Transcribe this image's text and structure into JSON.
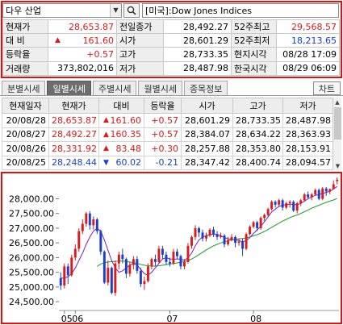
{
  "search": {
    "index_name": "다우 산업",
    "title": "[미국]:Dow Jones Indices"
  },
  "quote": {
    "rows": [
      [
        {
          "label": "현재가",
          "value": "28,653.87",
          "color": "up"
        },
        {
          "label": "전일종가",
          "value": "28,492.27",
          "color": ""
        },
        {
          "label": "52주최고",
          "value": "29,568.57",
          "color": "up"
        }
      ],
      [
        {
          "label": "대  비",
          "value": "161.60",
          "arrow": "▲",
          "color": "up"
        },
        {
          "label": "시가",
          "value": "28,601.29",
          "color": ""
        },
        {
          "label": "52주최저",
          "value": "18,213.65",
          "color": "down"
        }
      ],
      [
        {
          "label": "등락율",
          "value": "+0.57",
          "color": "up"
        },
        {
          "label": "고가",
          "value": "28,733.35",
          "color": ""
        },
        {
          "label": "현지시각",
          "value": "08/28 17:09",
          "color": ""
        }
      ],
      [
        {
          "label": "거래량",
          "value": "373,802,016",
          "color": ""
        },
        {
          "label": "저가",
          "value": "28,487.98",
          "color": ""
        },
        {
          "label": "한국시각",
          "value": "08/29 06:09",
          "color": ""
        }
      ]
    ]
  },
  "tabs": [
    "분별시세",
    "일별시세",
    "주별시세",
    "월별시세",
    "종목정보"
  ],
  "active_tab": 1,
  "chart_button": "차트",
  "daily": {
    "headers": [
      "현재일자",
      "현재가",
      "대비",
      "등락율",
      "시가",
      "고가",
      "저가"
    ],
    "rows": [
      {
        "date": "20/08/28",
        "close": "28,653.87",
        "arrow": "▲",
        "change": "161.60",
        "pct": "+0.57",
        "open": "28,601.29",
        "high": "28,733.35",
        "low": "28,487.98",
        "color": "up"
      },
      {
        "date": "20/08/27",
        "close": "28,492.27",
        "arrow": "▲",
        "change": "160.35",
        "pct": "+0.57",
        "open": "28,384.07",
        "high": "28,634.22",
        "low": "28,363.93",
        "color": "up"
      },
      {
        "date": "20/08/26",
        "close": "28,331.92",
        "arrow": "▲",
        "change": "83.48",
        "pct": "+0.30",
        "open": "28,257.88",
        "high": "28,353.80",
        "low": "28,153.91",
        "color": "up"
      },
      {
        "date": "20/08/25",
        "close": "28,248.44",
        "arrow": "▼",
        "change": "60.02",
        "pct": "-0.21",
        "open": "28,347.42",
        "high": "28,400.74",
        "low": "28,094.57",
        "color": "down"
      }
    ]
  },
  "colors": {
    "up": "#d81b1b",
    "down": "#1a3fc8",
    "ma_short": "#7a1fc9",
    "ma_long": "#1f9b2a",
    "frame": "#e01010"
  },
  "chart_data": {
    "type": "candlestick",
    "ylim": [
      24200,
      28700
    ],
    "yticks": [
      "28,000.00",
      "27,500.00",
      "27,000.00",
      "26,500.00",
      "26,000.00",
      "25,500.00",
      "25,000.00",
      "24,500.00"
    ],
    "ytick_values": [
      28000,
      27500,
      27000,
      26500,
      26000,
      25500,
      25000,
      24500
    ],
    "xticks": [
      {
        "label": "05",
        "index": 1
      },
      {
        "label": "06",
        "index": 4
      },
      {
        "label": "07",
        "index": 30
      },
      {
        "label": "08",
        "index": 53
      }
    ],
    "candles": [
      {
        "o": 25300,
        "c": 25050,
        "h": 25500,
        "l": 24900
      },
      {
        "o": 25050,
        "c": 25700,
        "h": 25800,
        "l": 24950
      },
      {
        "o": 25700,
        "c": 25400,
        "h": 25800,
        "l": 25100
      },
      {
        "o": 25400,
        "c": 26000,
        "h": 26100,
        "l": 25350
      },
      {
        "o": 26000,
        "c": 26300,
        "h": 26450,
        "l": 25900
      },
      {
        "o": 26300,
        "c": 26900,
        "h": 27000,
        "l": 26200
      },
      {
        "o": 26900,
        "c": 27150,
        "h": 27300,
        "l": 26800
      },
      {
        "o": 27150,
        "c": 27500,
        "h": 27550,
        "l": 27050
      },
      {
        "o": 27500,
        "c": 27100,
        "h": 27580,
        "l": 26950
      },
      {
        "o": 27100,
        "c": 27300,
        "h": 27400,
        "l": 26950
      },
      {
        "o": 27300,
        "c": 26900,
        "h": 27350,
        "l": 26800
      },
      {
        "o": 26900,
        "c": 26200,
        "h": 26950,
        "l": 26100
      },
      {
        "o": 26200,
        "c": 25150,
        "h": 26250,
        "l": 25100
      },
      {
        "o": 25150,
        "c": 25650,
        "h": 25900,
        "l": 25050
      },
      {
        "o": 25650,
        "c": 24800,
        "h": 25700,
        "l": 24750
      },
      {
        "o": 24800,
        "c": 25800,
        "h": 25900,
        "l": 24700
      },
      {
        "o": 25800,
        "c": 26100,
        "h": 26200,
        "l": 25600
      },
      {
        "o": 26100,
        "c": 25950,
        "h": 26300,
        "l": 25800
      },
      {
        "o": 25950,
        "c": 25450,
        "h": 26000,
        "l": 25300
      },
      {
        "o": 25450,
        "c": 25750,
        "h": 25850,
        "l": 25350
      },
      {
        "o": 25750,
        "c": 25950,
        "h": 26050,
        "l": 25600
      },
      {
        "o": 25950,
        "c": 25550,
        "h": 26050,
        "l": 25450
      },
      {
        "o": 25550,
        "c": 25100,
        "h": 25650,
        "l": 25000
      },
      {
        "o": 25100,
        "c": 25200,
        "h": 25350,
        "l": 24900
      },
      {
        "o": 25200,
        "c": 25700,
        "h": 25800,
        "l": 25150
      },
      {
        "o": 25700,
        "c": 25950,
        "h": 26000,
        "l": 25600
      },
      {
        "o": 25950,
        "c": 25850,
        "h": 26100,
        "l": 25700
      },
      {
        "o": 25850,
        "c": 26300,
        "h": 26400,
        "l": 25800
      },
      {
        "o": 26300,
        "c": 26100,
        "h": 26400,
        "l": 25950
      },
      {
        "o": 26100,
        "c": 25850,
        "h": 26200,
        "l": 25750
      },
      {
        "o": 25850,
        "c": 25800,
        "h": 26000,
        "l": 25700
      },
      {
        "o": 25800,
        "c": 26200,
        "h": 26300,
        "l": 25750
      },
      {
        "o": 26200,
        "c": 26050,
        "h": 26300,
        "l": 25950
      },
      {
        "o": 26050,
        "c": 25700,
        "h": 26100,
        "l": 25600
      },
      {
        "o": 25700,
        "c": 25850,
        "h": 25950,
        "l": 25600
      },
      {
        "o": 25850,
        "c": 26400,
        "h": 26500,
        "l": 25800
      },
      {
        "o": 26400,
        "c": 26700,
        "h": 26750,
        "l": 26300
      },
      {
        "o": 26700,
        "c": 27000,
        "h": 27100,
        "l": 26600
      },
      {
        "o": 27000,
        "c": 26850,
        "h": 27050,
        "l": 26700
      },
      {
        "o": 26850,
        "c": 26650,
        "h": 26950,
        "l": 26550
      },
      {
        "o": 26650,
        "c": 26750,
        "h": 26850,
        "l": 26550
      },
      {
        "o": 26750,
        "c": 26950,
        "h": 27000,
        "l": 26700
      },
      {
        "o": 26950,
        "c": 26800,
        "h": 27050,
        "l": 26700
      },
      {
        "o": 26800,
        "c": 26700,
        "h": 26900,
        "l": 26600
      },
      {
        "o": 26700,
        "c": 26750,
        "h": 26850,
        "l": 26650
      },
      {
        "o": 26750,
        "c": 26450,
        "h": 26800,
        "l": 26350
      },
      {
        "o": 26450,
        "c": 26600,
        "h": 26700,
        "l": 26400
      },
      {
        "o": 26600,
        "c": 26700,
        "h": 26800,
        "l": 26550
      },
      {
        "o": 26700,
        "c": 26500,
        "h": 26750,
        "l": 26350
      },
      {
        "o": 26500,
        "c": 26550,
        "h": 26650,
        "l": 26400
      },
      {
        "o": 26550,
        "c": 26300,
        "h": 26650,
        "l": 26050
      },
      {
        "o": 26300,
        "c": 26800,
        "h": 26850,
        "l": 26250
      },
      {
        "o": 26800,
        "c": 27050,
        "h": 27100,
        "l": 26750
      },
      {
        "o": 27050,
        "c": 27200,
        "h": 27250,
        "l": 27000
      },
      {
        "o": 27200,
        "c": 27000,
        "h": 27250,
        "l": 26900
      },
      {
        "o": 27000,
        "c": 27350,
        "h": 27400,
        "l": 26950
      },
      {
        "o": 27350,
        "c": 27450,
        "h": 27500,
        "l": 27250
      },
      {
        "o": 27450,
        "c": 27650,
        "h": 27700,
        "l": 27400
      },
      {
        "o": 27650,
        "c": 27900,
        "h": 27950,
        "l": 27600
      },
      {
        "o": 27900,
        "c": 27800,
        "h": 27950,
        "l": 27700
      },
      {
        "o": 27800,
        "c": 27950,
        "h": 28000,
        "l": 27750
      },
      {
        "o": 27950,
        "c": 27700,
        "h": 28000,
        "l": 27600
      },
      {
        "o": 27700,
        "c": 27850,
        "h": 27900,
        "l": 27650
      },
      {
        "o": 27850,
        "c": 27900,
        "h": 27950,
        "l": 27700
      },
      {
        "o": 27900,
        "c": 27600,
        "h": 27950,
        "l": 27550
      },
      {
        "o": 27600,
        "c": 27850,
        "h": 27900,
        "l": 27500
      },
      {
        "o": 27850,
        "c": 27950,
        "h": 28000,
        "l": 27750
      },
      {
        "o": 27950,
        "c": 28150,
        "h": 28200,
        "l": 27900
      },
      {
        "o": 28150,
        "c": 28050,
        "h": 28250,
        "l": 28000
      },
      {
        "o": 28050,
        "c": 28150,
        "h": 28200,
        "l": 27950
      },
      {
        "o": 28150,
        "c": 28300,
        "h": 28350,
        "l": 28100
      },
      {
        "o": 28300,
        "c": 28000,
        "h": 28350,
        "l": 27950
      },
      {
        "o": 28000,
        "c": 28350,
        "h": 28400,
        "l": 27950
      },
      {
        "o": 28350,
        "c": 28250,
        "h": 28400,
        "l": 28100
      },
      {
        "o": 28250,
        "c": 28330,
        "h": 28350,
        "l": 28150
      },
      {
        "o": 28330,
        "c": 28490,
        "h": 28630,
        "l": 28360
      },
      {
        "o": 28600,
        "c": 28650,
        "h": 28730,
        "l": 28490
      }
    ],
    "ma_short": [
      25300,
      25300,
      25350,
      25450,
      25650,
      25900,
      26150,
      26450,
      26700,
      26900,
      27000,
      26900,
      26600,
      26250,
      25900,
      25650,
      25500,
      25550,
      25650,
      25750,
      25800,
      25750,
      25600,
      25450,
      25400,
      25500,
      25650,
      25800,
      25950,
      26000,
      25950,
      25950,
      25950,
      25950,
      25900,
      26000,
      26150,
      26400,
      26600,
      26700,
      26750,
      26780,
      26800,
      26780,
      26740,
      26680,
      26640,
      26620,
      26600,
      26580,
      26540,
      26580,
      26680,
      26820,
      26940,
      27060,
      27220,
      27380,
      27550,
      27650,
      27740,
      27780,
      27800,
      27820,
      27800,
      27800,
      27840,
      27920,
      28000,
      28060,
      28120,
      28140,
      28180,
      28220,
      28250,
      28330,
      28420
    ],
    "ma_long": [
      null,
      null,
      null,
      null,
      null,
      null,
      null,
      null,
      null,
      null,
      25700,
      25780,
      25830,
      25850,
      25860,
      25870,
      25880,
      25880,
      25870,
      25850,
      25830,
      25800,
      25770,
      25740,
      25720,
      25710,
      25710,
      25720,
      25740,
      25760,
      25780,
      25800,
      25820,
      25840,
      25860,
      25900,
      25950,
      26020,
      26100,
      26180,
      26260,
      26330,
      26400,
      26450,
      26500,
      26540,
      26570,
      26600,
      26620,
      26640,
      26650,
      26670,
      26700,
      26740,
      26780,
      26830,
      26890,
      26960,
      27030,
      27100,
      27170,
      27240,
      27300,
      27360,
      27410,
      27450,
      27500,
      27560,
      27620,
      27680,
      27730,
      27780,
      27830,
      27880,
      27920,
      27960,
      28010
    ]
  }
}
